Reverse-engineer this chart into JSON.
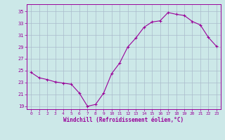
{
  "hours": [
    0,
    1,
    2,
    3,
    4,
    5,
    6,
    7,
    8,
    9,
    10,
    11,
    12,
    13,
    14,
    15,
    16,
    17,
    18,
    19,
    20,
    21,
    22,
    23
  ],
  "values": [
    24.7,
    23.8,
    23.5,
    23.1,
    22.9,
    22.7,
    21.2,
    19.0,
    19.3,
    21.2,
    24.5,
    26.3,
    29.0,
    30.5,
    32.3,
    33.2,
    33.4,
    34.8,
    34.5,
    34.3,
    33.3,
    32.7,
    30.6,
    29.1
  ],
  "line_color": "#990099",
  "bg_color": "#cce8e8",
  "grid_color": "#aabbcc",
  "xlabel": "Windchill (Refroidissement éolien,°C)",
  "ylim": [
    18.5,
    36.2
  ],
  "yticks": [
    19,
    21,
    23,
    25,
    27,
    29,
    31,
    33,
    35
  ],
  "xlim": [
    -0.5,
    23.5
  ],
  "xticks": [
    0,
    1,
    2,
    3,
    4,
    5,
    6,
    7,
    8,
    9,
    10,
    11,
    12,
    13,
    14,
    15,
    16,
    17,
    18,
    19,
    20,
    21,
    22,
    23
  ]
}
